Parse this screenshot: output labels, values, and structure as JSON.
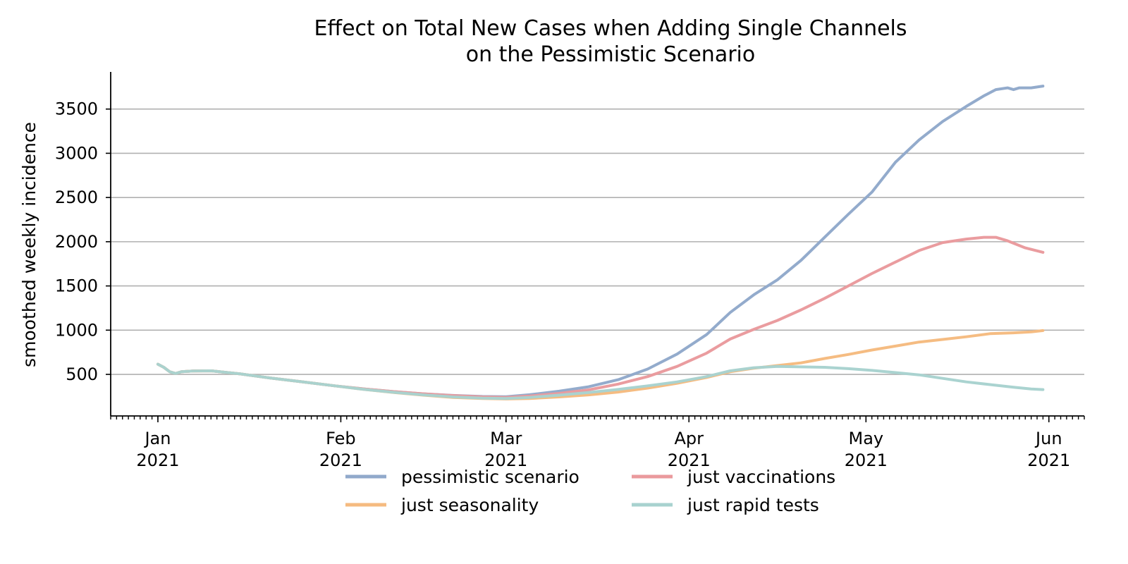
{
  "chart_data": {
    "type": "line",
    "title": "Effect on Total New Cases when Adding Single Channels",
    "subtitle": "on the Pessimistic Scenario",
    "xlabel": "",
    "ylabel": "smoothed weekly incidence",
    "x_tick_labels": [
      {
        "date": "2021-01-01",
        "month": "Jan",
        "year": "2021"
      },
      {
        "date": "2021-02-01",
        "month": "Feb",
        "year": "2021"
      },
      {
        "date": "2021-03-01",
        "month": "Mar",
        "year": "2021"
      },
      {
        "date": "2021-04-01",
        "month": "Apr",
        "year": "2021"
      },
      {
        "date": "2021-05-01",
        "month": "May",
        "year": "2021"
      },
      {
        "date": "2021-06-01",
        "month": "Jun",
        "year": "2021"
      }
    ],
    "xlim": [
      "2020-12-24",
      "2021-06-07"
    ],
    "ylim": [
      30,
      3920
    ],
    "y_ticks": [
      500,
      1000,
      1500,
      2000,
      2500,
      3000,
      3500
    ],
    "grid": "horizontal",
    "legend_position": "bottom",
    "series": [
      {
        "name": "pessimistic scenario",
        "color": "#91a9cb",
        "points": [
          [
            "2021-01-01",
            615
          ],
          [
            "2021-01-02",
            580
          ],
          [
            "2021-01-03",
            530
          ],
          [
            "2021-01-04",
            510
          ],
          [
            "2021-01-05",
            530
          ],
          [
            "2021-01-07",
            538
          ],
          [
            "2021-01-10",
            540
          ],
          [
            "2021-01-15",
            505
          ],
          [
            "2021-01-20",
            460
          ],
          [
            "2021-01-25",
            420
          ],
          [
            "2021-01-31",
            370
          ],
          [
            "2021-02-05",
            335
          ],
          [
            "2021-02-10",
            305
          ],
          [
            "2021-02-15",
            280
          ],
          [
            "2021-02-20",
            262
          ],
          [
            "2021-02-25",
            250
          ],
          [
            "2021-03-01",
            248
          ],
          [
            "2021-03-05",
            270
          ],
          [
            "2021-03-10",
            310
          ],
          [
            "2021-03-15",
            360
          ],
          [
            "2021-03-20",
            440
          ],
          [
            "2021-03-25",
            560
          ],
          [
            "2021-03-30",
            730
          ],
          [
            "2021-04-04",
            950
          ],
          [
            "2021-04-08",
            1200
          ],
          [
            "2021-04-12",
            1400
          ],
          [
            "2021-04-16",
            1570
          ],
          [
            "2021-04-20",
            1790
          ],
          [
            "2021-04-24",
            2050
          ],
          [
            "2021-04-28",
            2310
          ],
          [
            "2021-05-02",
            2560
          ],
          [
            "2021-05-06",
            2900
          ],
          [
            "2021-05-10",
            3150
          ],
          [
            "2021-05-14",
            3360
          ],
          [
            "2021-05-18",
            3530
          ],
          [
            "2021-05-21",
            3650
          ],
          [
            "2021-05-23",
            3720
          ],
          [
            "2021-05-25",
            3740
          ],
          [
            "2021-05-26",
            3720
          ],
          [
            "2021-05-27",
            3740
          ],
          [
            "2021-05-29",
            3740
          ],
          [
            "2021-05-31",
            3760
          ]
        ]
      },
      {
        "name": "just vaccinations",
        "color": "#ea9a9d",
        "points": [
          [
            "2021-01-01",
            615
          ],
          [
            "2021-01-02",
            580
          ],
          [
            "2021-01-03",
            530
          ],
          [
            "2021-01-04",
            510
          ],
          [
            "2021-01-05",
            530
          ],
          [
            "2021-01-07",
            538
          ],
          [
            "2021-01-10",
            540
          ],
          [
            "2021-01-15",
            505
          ],
          [
            "2021-01-20",
            460
          ],
          [
            "2021-01-25",
            420
          ],
          [
            "2021-01-31",
            370
          ],
          [
            "2021-02-05",
            335
          ],
          [
            "2021-02-10",
            305
          ],
          [
            "2021-02-15",
            280
          ],
          [
            "2021-02-20",
            260
          ],
          [
            "2021-02-25",
            245
          ],
          [
            "2021-03-01",
            240
          ],
          [
            "2021-03-05",
            255
          ],
          [
            "2021-03-10",
            285
          ],
          [
            "2021-03-15",
            325
          ],
          [
            "2021-03-20",
            390
          ],
          [
            "2021-03-25",
            475
          ],
          [
            "2021-03-30",
            590
          ],
          [
            "2021-04-04",
            740
          ],
          [
            "2021-04-08",
            900
          ],
          [
            "2021-04-12",
            1010
          ],
          [
            "2021-04-16",
            1110
          ],
          [
            "2021-04-20",
            1230
          ],
          [
            "2021-04-24",
            1360
          ],
          [
            "2021-04-28",
            1500
          ],
          [
            "2021-05-02",
            1640
          ],
          [
            "2021-05-06",
            1770
          ],
          [
            "2021-05-10",
            1900
          ],
          [
            "2021-05-14",
            1990
          ],
          [
            "2021-05-18",
            2030
          ],
          [
            "2021-05-21",
            2050
          ],
          [
            "2021-05-23",
            2050
          ],
          [
            "2021-05-25",
            2010
          ],
          [
            "2021-05-28",
            1930
          ],
          [
            "2021-05-31",
            1880
          ]
        ]
      },
      {
        "name": "just seasonality",
        "color": "#f5bb80",
        "points": [
          [
            "2021-01-01",
            615
          ],
          [
            "2021-01-02",
            580
          ],
          [
            "2021-01-03",
            530
          ],
          [
            "2021-01-04",
            510
          ],
          [
            "2021-01-05",
            530
          ],
          [
            "2021-01-07",
            538
          ],
          [
            "2021-01-10",
            540
          ],
          [
            "2021-01-15",
            505
          ],
          [
            "2021-01-20",
            460
          ],
          [
            "2021-01-25",
            420
          ],
          [
            "2021-01-31",
            370
          ],
          [
            "2021-02-05",
            330
          ],
          [
            "2021-02-10",
            295
          ],
          [
            "2021-02-15",
            265
          ],
          [
            "2021-02-20",
            240
          ],
          [
            "2021-02-25",
            228
          ],
          [
            "2021-03-01",
            222
          ],
          [
            "2021-03-05",
            228
          ],
          [
            "2021-03-10",
            245
          ],
          [
            "2021-03-15",
            268
          ],
          [
            "2021-03-20",
            300
          ],
          [
            "2021-03-25",
            345
          ],
          [
            "2021-03-30",
            400
          ],
          [
            "2021-04-04",
            465
          ],
          [
            "2021-04-08",
            530
          ],
          [
            "2021-04-12",
            570
          ],
          [
            "2021-04-16",
            600
          ],
          [
            "2021-04-20",
            630
          ],
          [
            "2021-04-24",
            680
          ],
          [
            "2021-04-28",
            725
          ],
          [
            "2021-05-02",
            775
          ],
          [
            "2021-05-06",
            820
          ],
          [
            "2021-05-10",
            865
          ],
          [
            "2021-05-14",
            895
          ],
          [
            "2021-05-18",
            925
          ],
          [
            "2021-05-22",
            960
          ],
          [
            "2021-05-26",
            970
          ],
          [
            "2021-05-29",
            980
          ],
          [
            "2021-05-31",
            995
          ]
        ]
      },
      {
        "name": "just rapid tests",
        "color": "#a8d2cf",
        "points": [
          [
            "2021-01-01",
            615
          ],
          [
            "2021-01-02",
            580
          ],
          [
            "2021-01-03",
            530
          ],
          [
            "2021-01-04",
            510
          ],
          [
            "2021-01-05",
            530
          ],
          [
            "2021-01-07",
            538
          ],
          [
            "2021-01-10",
            540
          ],
          [
            "2021-01-15",
            505
          ],
          [
            "2021-01-20",
            460
          ],
          [
            "2021-01-25",
            420
          ],
          [
            "2021-01-31",
            370
          ],
          [
            "2021-02-05",
            330
          ],
          [
            "2021-02-10",
            297
          ],
          [
            "2021-02-15",
            268
          ],
          [
            "2021-02-20",
            245
          ],
          [
            "2021-02-25",
            232
          ],
          [
            "2021-03-01",
            228
          ],
          [
            "2021-03-05",
            240
          ],
          [
            "2021-03-10",
            265
          ],
          [
            "2021-03-15",
            295
          ],
          [
            "2021-03-20",
            330
          ],
          [
            "2021-03-25",
            370
          ],
          [
            "2021-03-30",
            415
          ],
          [
            "2021-04-04",
            475
          ],
          [
            "2021-04-08",
            540
          ],
          [
            "2021-04-12",
            575
          ],
          [
            "2021-04-16",
            590
          ],
          [
            "2021-04-20",
            585
          ],
          [
            "2021-04-24",
            580
          ],
          [
            "2021-04-28",
            565
          ],
          [
            "2021-05-02",
            545
          ],
          [
            "2021-05-06",
            520
          ],
          [
            "2021-05-10",
            495
          ],
          [
            "2021-05-14",
            455
          ],
          [
            "2021-05-18",
            415
          ],
          [
            "2021-05-22",
            385
          ],
          [
            "2021-05-26",
            355
          ],
          [
            "2021-05-29",
            335
          ],
          [
            "2021-05-31",
            328
          ]
        ]
      }
    ]
  }
}
